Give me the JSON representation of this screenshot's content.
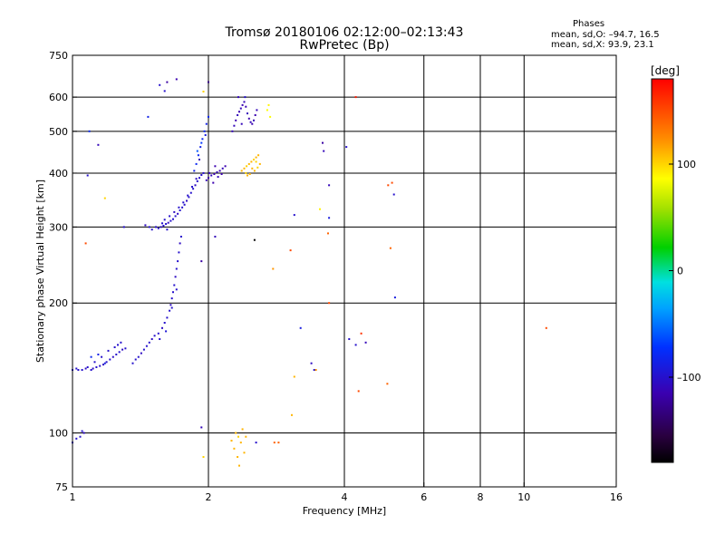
{
  "header": {
    "title": "Tromsø 20180106 02:12:00–02:13:43",
    "subtitle": "RwPretec (Bp)"
  },
  "stats": {
    "heading": "Phases",
    "line_o": "mean, sd,O: –94.7, 16.5",
    "line_x": "mean, sd,X:  93.9, 23.1"
  },
  "colorbar": {
    "label": "[deg]",
    "ticks": [
      {
        "value": 100,
        "label": "100"
      },
      {
        "value": 0,
        "label": "0"
      },
      {
        "value": -100,
        "label": "–100"
      }
    ],
    "range": [
      -180,
      180
    ]
  },
  "chart_data": {
    "type": "scatter",
    "title": "Tromsø 20180106 02:12:00–02:13:43",
    "subtitle": "RwPretec (Bp)",
    "xlabel": "Frequency [MHz]",
    "ylabel": "Stationary phase Virtual Height [km]",
    "x_scale": "log",
    "y_scale": "log",
    "xlim": [
      1,
      16
    ],
    "ylim": [
      75,
      750
    ],
    "x_ticks": [
      {
        "value": 1,
        "label": "1"
      },
      {
        "value": 2,
        "label": "2"
      },
      {
        "value": 4,
        "label": "4"
      },
      {
        "value": 6,
        "label": "6"
      },
      {
        "value": 8,
        "label": "8"
      },
      {
        "value": 10,
        "label": "10"
      },
      {
        "value": 16,
        "label": "16"
      }
    ],
    "y_ticks": [
      {
        "value": 75,
        "label": "75"
      },
      {
        "value": 100,
        "label": "100"
      },
      {
        "value": 200,
        "label": "200"
      },
      {
        "value": 300,
        "label": "300"
      },
      {
        "value": 400,
        "label": "400"
      },
      {
        "value": 500,
        "label": "500"
      },
      {
        "value": 600,
        "label": "600"
      },
      {
        "value": 750,
        "label": "750"
      }
    ],
    "x_gridlines": [
      2,
      4,
      6,
      8,
      10
    ],
    "y_gridlines": [
      100,
      200,
      300,
      400,
      500,
      600
    ],
    "color_by": "phase [deg]",
    "points": [
      [
        1.0,
        140,
        -100
      ],
      [
        1.02,
        141,
        -100
      ],
      [
        1.03,
        140,
        -100
      ],
      [
        1.05,
        140,
        -100
      ],
      [
        1.07,
        141,
        -105
      ],
      [
        1.08,
        142,
        -100
      ],
      [
        1.1,
        140,
        -100
      ],
      [
        1.11,
        141,
        -105
      ],
      [
        1.13,
        142,
        -100
      ],
      [
        1.15,
        143,
        -100
      ],
      [
        1.17,
        144,
        -105
      ],
      [
        1.19,
        146,
        -100
      ],
      [
        1.21,
        148,
        -100
      ],
      [
        1.23,
        150,
        -105
      ],
      [
        1.25,
        152,
        -100
      ],
      [
        1.27,
        154,
        -100
      ],
      [
        1.29,
        156,
        -105
      ],
      [
        1.31,
        157,
        -100
      ],
      [
        1.12,
        146,
        -100
      ],
      [
        1.16,
        150,
        -100
      ],
      [
        1.2,
        155,
        -100
      ],
      [
        1.24,
        158,
        -100
      ],
      [
        1.28,
        162,
        -100
      ],
      [
        1.1,
        150,
        -80
      ],
      [
        1.14,
        152,
        -85
      ],
      [
        1.18,
        145,
        -90
      ],
      [
        1.26,
        160,
        -100
      ],
      [
        1.36,
        145,
        -100
      ],
      [
        1.38,
        148,
        -100
      ],
      [
        1.4,
        150,
        -100
      ],
      [
        1.42,
        153,
        -105
      ],
      [
        1.44,
        156,
        -100
      ],
      [
        1.46,
        159,
        -100
      ],
      [
        1.48,
        162,
        -100
      ],
      [
        1.5,
        165,
        -105
      ],
      [
        1.52,
        168,
        -100
      ],
      [
        1.55,
        170,
        -100
      ],
      [
        1.58,
        175,
        -105
      ],
      [
        1.6,
        180,
        -100
      ],
      [
        1.62,
        185,
        -100
      ],
      [
        1.64,
        192,
        -100
      ],
      [
        1.65,
        198,
        -105
      ],
      [
        1.66,
        205,
        -100
      ],
      [
        1.67,
        212,
        -100
      ],
      [
        1.68,
        220,
        -100
      ],
      [
        1.69,
        230,
        -105
      ],
      [
        1.7,
        240,
        -100
      ],
      [
        1.71,
        250,
        -100
      ],
      [
        1.72,
        262,
        -100
      ],
      [
        1.73,
        275,
        -105
      ],
      [
        1.74,
        285,
        -100
      ],
      [
        1.56,
        165,
        -100
      ],
      [
        1.61,
        172,
        -95
      ],
      [
        1.66,
        195,
        -100
      ],
      [
        1.7,
        215,
        -100
      ],
      [
        1.53,
        300,
        -100
      ],
      [
        1.55,
        298,
        -100
      ],
      [
        1.57,
        300,
        -105
      ],
      [
        1.59,
        302,
        -100
      ],
      [
        1.61,
        305,
        -100
      ],
      [
        1.63,
        307,
        -105
      ],
      [
        1.65,
        310,
        -100
      ],
      [
        1.67,
        313,
        -100
      ],
      [
        1.69,
        318,
        -100
      ],
      [
        1.71,
        322,
        -105
      ],
      [
        1.73,
        328,
        -100
      ],
      [
        1.75,
        333,
        -100
      ],
      [
        1.77,
        338,
        -100
      ],
      [
        1.79,
        345,
        -105
      ],
      [
        1.81,
        352,
        -100
      ],
      [
        1.83,
        360,
        -100
      ],
      [
        1.85,
        368,
        -100
      ],
      [
        1.87,
        375,
        -105
      ],
      [
        1.89,
        383,
        -100
      ],
      [
        1.91,
        390,
        -100
      ],
      [
        1.93,
        396,
        -100
      ],
      [
        1.95,
        400,
        -100
      ],
      [
        1.6,
        312,
        -100
      ],
      [
        1.64,
        318,
        -100
      ],
      [
        1.68,
        325,
        -105
      ],
      [
        1.72,
        333,
        -100
      ],
      [
        1.76,
        342,
        -100
      ],
      [
        1.8,
        355,
        -100
      ],
      [
        1.84,
        372,
        -100
      ],
      [
        1.88,
        388,
        -105
      ],
      [
        1.58,
        306,
        -100
      ],
      [
        1.62,
        296,
        -100
      ],
      [
        1.5,
        296,
        -100
      ],
      [
        1.48,
        300,
        -100
      ],
      [
        1.45,
        303,
        -105
      ],
      [
        1.86,
        405,
        -85
      ],
      [
        1.88,
        420,
        -80
      ],
      [
        1.9,
        440,
        -80
      ],
      [
        1.92,
        460,
        -85
      ],
      [
        1.94,
        480,
        -80
      ],
      [
        1.96,
        500,
        -80
      ],
      [
        1.98,
        520,
        -85
      ],
      [
        2.0,
        540,
        -80
      ],
      [
        1.89,
        450,
        -60
      ],
      [
        1.93,
        470,
        -70
      ],
      [
        1.97,
        490,
        -90
      ],
      [
        1.91,
        430,
        -110
      ],
      [
        1.98,
        385,
        -110
      ],
      [
        2.0,
        390,
        -115
      ],
      [
        2.03,
        395,
        -110
      ],
      [
        2.06,
        398,
        -115
      ],
      [
        2.09,
        402,
        -110
      ],
      [
        2.12,
        405,
        -115
      ],
      [
        2.15,
        410,
        -110
      ],
      [
        2.18,
        415,
        -115
      ],
      [
        2.05,
        380,
        -115
      ],
      [
        2.1,
        392,
        -110
      ],
      [
        2.14,
        398,
        -115
      ],
      [
        2.01,
        400,
        -110
      ],
      [
        2.07,
        415,
        -115
      ],
      [
        2.26,
        500,
        -110
      ],
      [
        2.28,
        515,
        -110
      ],
      [
        2.3,
        530,
        -115
      ],
      [
        2.32,
        545,
        -110
      ],
      [
        2.34,
        555,
        -115
      ],
      [
        2.36,
        565,
        -110
      ],
      [
        2.38,
        575,
        -115
      ],
      [
        2.4,
        585,
        -110
      ],
      [
        2.42,
        570,
        -115
      ],
      [
        2.44,
        550,
        -110
      ],
      [
        2.46,
        535,
        -115
      ],
      [
        2.48,
        525,
        -110
      ],
      [
        2.5,
        520,
        -115
      ],
      [
        2.52,
        530,
        -110
      ],
      [
        2.54,
        545,
        -115
      ],
      [
        2.56,
        560,
        -110
      ],
      [
        2.33,
        600,
        -110
      ],
      [
        2.37,
        520,
        -110
      ],
      [
        2.41,
        600,
        -100
      ],
      [
        2.37,
        405,
        110
      ],
      [
        2.4,
        410,
        110
      ],
      [
        2.43,
        415,
        100
      ],
      [
        2.46,
        420,
        110
      ],
      [
        2.49,
        425,
        110
      ],
      [
        2.52,
        430,
        100
      ],
      [
        2.55,
        435,
        110
      ],
      [
        2.58,
        440,
        110
      ],
      [
        2.42,
        400,
        100
      ],
      [
        2.47,
        398,
        110
      ],
      [
        2.53,
        405,
        110
      ],
      [
        2.57,
        412,
        100
      ],
      [
        2.6,
        420,
        110
      ],
      [
        2.44,
        395,
        110
      ],
      [
        2.5,
        410,
        110
      ],
      [
        2.55,
        425,
        100
      ],
      [
        2.7,
        560,
        85
      ],
      [
        2.72,
        575,
        90
      ],
      [
        2.74,
        540,
        85
      ],
      [
        2.3,
        100,
        110
      ],
      [
        2.33,
        98,
        100
      ],
      [
        2.36,
        95,
        110
      ],
      [
        2.28,
        92,
        110
      ],
      [
        2.4,
        90,
        110
      ],
      [
        2.32,
        88,
        110
      ],
      [
        2.25,
        96,
        110
      ],
      [
        2.38,
        102,
        110
      ],
      [
        2.42,
        98,
        110
      ],
      [
        2.34,
        84,
        110
      ],
      [
        2.55,
        95,
        -100
      ],
      [
        2.8,
        95,
        140
      ],
      [
        2.86,
        95,
        140
      ],
      [
        1.0,
        95,
        -100
      ],
      [
        1.05,
        101,
        -100
      ],
      [
        1.06,
        100,
        -105
      ],
      [
        1.02,
        97,
        -100
      ],
      [
        1.04,
        98,
        -100
      ],
      [
        1.07,
        275,
        150
      ],
      [
        1.08,
        395,
        -100
      ],
      [
        1.09,
        500,
        -80
      ],
      [
        1.14,
        465,
        -110
      ],
      [
        1.18,
        350,
        100
      ],
      [
        1.3,
        300,
        -100
      ],
      [
        1.47,
        540,
        -85
      ],
      [
        1.56,
        640,
        -100
      ],
      [
        1.6,
        620,
        -100
      ],
      [
        1.62,
        650,
        -120
      ],
      [
        1.7,
        660,
        -115
      ],
      [
        1.95,
        618,
        100
      ],
      [
        2.0,
        650,
        -130
      ],
      [
        1.93,
        250,
        -120
      ],
      [
        1.93,
        103,
        -110
      ],
      [
        1.95,
        88,
        100
      ],
      [
        2.07,
        285,
        -110
      ],
      [
        2.53,
        280,
        -180
      ],
      [
        2.78,
        240,
        120
      ],
      [
        3.04,
        265,
        150
      ],
      [
        3.06,
        110,
        110
      ],
      [
        3.1,
        135,
        110
      ],
      [
        3.2,
        175,
        -90
      ],
      [
        3.38,
        145,
        -105
      ],
      [
        3.43,
        140,
        -100
      ],
      [
        3.46,
        140,
        120
      ],
      [
        3.53,
        330,
        90
      ],
      [
        3.58,
        470,
        -120
      ],
      [
        3.6,
        450,
        -110
      ],
      [
        3.7,
        375,
        -110
      ],
      [
        3.7,
        315,
        -90
      ],
      [
        3.7,
        200,
        150
      ],
      [
        3.68,
        290,
        140
      ],
      [
        4.04,
        460,
        -100
      ],
      [
        4.1,
        165,
        -100
      ],
      [
        4.24,
        160,
        -100
      ],
      [
        4.3,
        125,
        150
      ],
      [
        4.36,
        170,
        160
      ],
      [
        4.46,
        162,
        -110
      ],
      [
        4.98,
        130,
        140
      ],
      [
        5.0,
        375,
        150
      ],
      [
        5.06,
        268,
        140
      ],
      [
        5.1,
        380,
        150
      ],
      [
        5.15,
        357,
        -100
      ],
      [
        5.18,
        206,
        -90
      ],
      [
        4.24,
        600,
        170
      ],
      [
        3.1,
        320,
        -100
      ],
      [
        11.2,
        175,
        150
      ]
    ]
  }
}
